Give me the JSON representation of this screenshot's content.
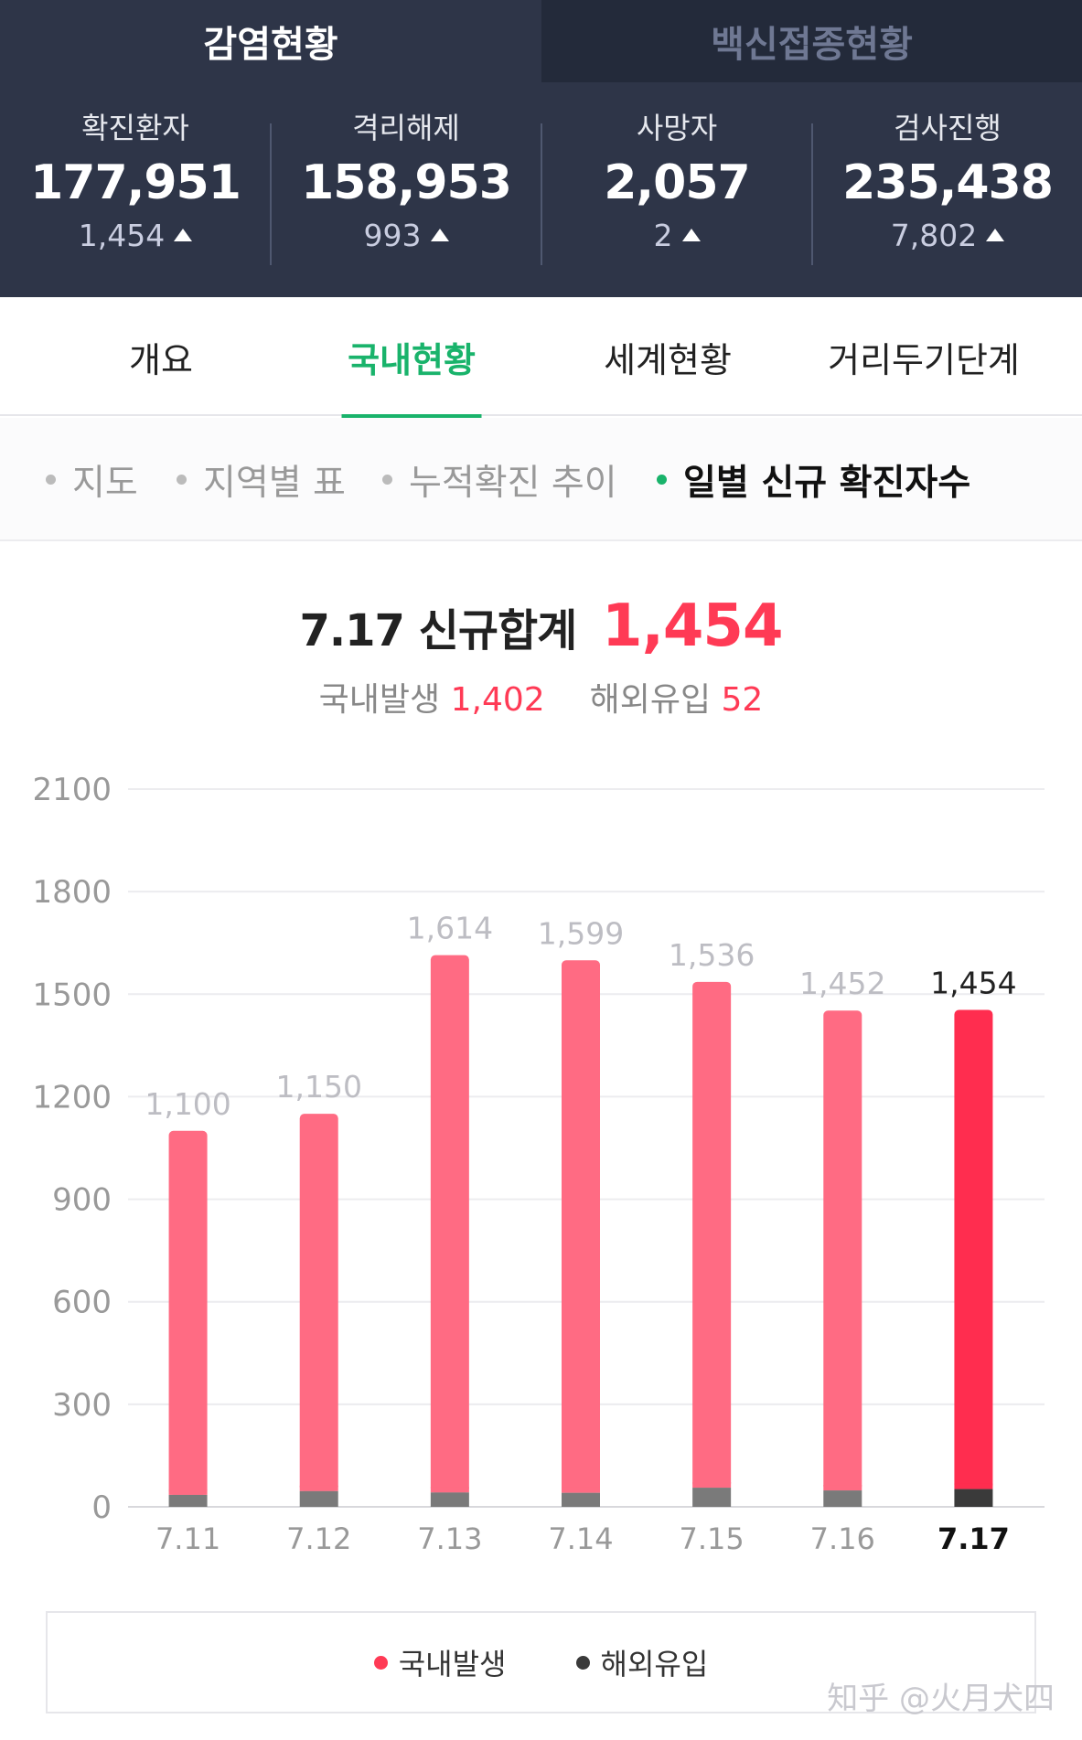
{
  "top_tabs": [
    {
      "label": "감염현황",
      "active": true
    },
    {
      "label": "백신접종현황",
      "active": false
    }
  ],
  "stats": [
    {
      "label": "확진환자",
      "value": "177,951",
      "delta": "1,454"
    },
    {
      "label": "격리해제",
      "value": "158,953",
      "delta": "993"
    },
    {
      "label": "사망자",
      "value": "2,057",
      "delta": "2"
    },
    {
      "label": "검사진행",
      "value": "235,438",
      "delta": "7,802"
    }
  ],
  "main_tabs": [
    {
      "label": "개요",
      "active": false
    },
    {
      "label": "국내현황",
      "active": true
    },
    {
      "label": "세계현황",
      "active": false
    },
    {
      "label": "거리두기단계",
      "active": false
    }
  ],
  "sub_tabs": [
    {
      "label": "지도",
      "active": false
    },
    {
      "label": "지역별 표",
      "active": false
    },
    {
      "label": "누적확진 추이",
      "active": false
    },
    {
      "label": "일별 신규 확진자수",
      "active": true
    }
  ],
  "summary": {
    "date": "7.17",
    "total_label": "신규합계",
    "total": "1,454",
    "domestic_label": "국내발생",
    "domestic": "1,402",
    "overseas_label": "해외유입",
    "overseas": "52"
  },
  "colors": {
    "header_bg": "#2e3548",
    "accent_green": "#19b36b",
    "domestic": "#ff6b83",
    "domestic_active": "#ff2d4f",
    "overseas": "#7a7a7a",
    "overseas_active": "#3a3a3a"
  },
  "chart_data": {
    "type": "bar",
    "stacked": true,
    "categories": [
      "7.11",
      "7.12",
      "7.13",
      "7.14",
      "7.15",
      "7.16",
      "7.17"
    ],
    "totals": [
      "1,100",
      "1,150",
      "1,614",
      "1,599",
      "1,536",
      "1,452",
      "1,454"
    ],
    "series": [
      {
        "name": "국내발생",
        "values": [
          1065,
          1104,
          1572,
          1558,
          1480,
          1404,
          1402
        ]
      },
      {
        "name": "해외유입",
        "values": [
          35,
          46,
          42,
          41,
          56,
          48,
          52
        ]
      }
    ],
    "y_ticks": [
      "0",
      "300",
      "600",
      "900",
      "1200",
      "1500",
      "1800",
      "2100"
    ],
    "ylim": [
      0,
      2100
    ],
    "highlight_index": 6,
    "grid": true,
    "legend": "bottom"
  },
  "legend": [
    {
      "label": "국내발생",
      "color": "#ff3a55"
    },
    {
      "label": "해외유입",
      "color": "#3a3a3a"
    }
  ],
  "watermark": "知乎 @火月犬四"
}
